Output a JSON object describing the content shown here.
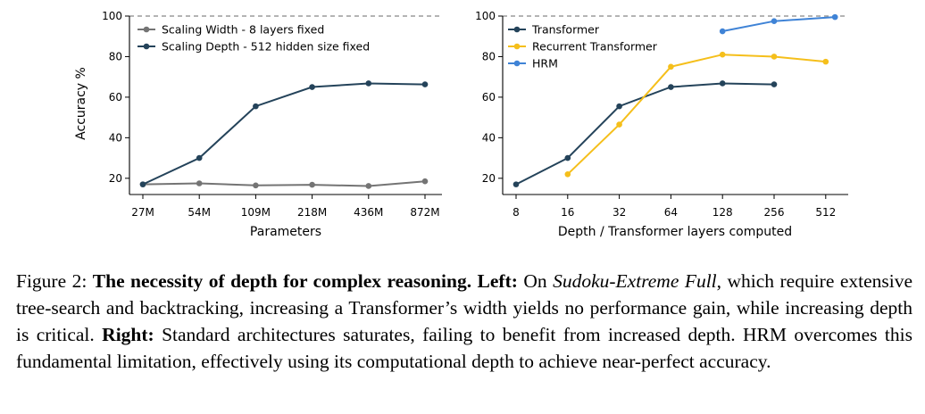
{
  "chart_data": [
    {
      "type": "line",
      "xlabel": "Parameters",
      "ylabel": "Accuracy %",
      "categories": [
        "27M",
        "54M",
        "109M",
        "218M",
        "436M",
        "872M"
      ],
      "y_ticks": [
        20,
        40,
        60,
        80,
        100
      ],
      "ylim": [
        12,
        100
      ],
      "reference_line": 100,
      "legend_position": "top-left",
      "series": [
        {
          "name": "Scaling Width - 8 layers fixed",
          "color": "#747474",
          "values": [
            17,
            17.5,
            16.5,
            16.8,
            16.2,
            18.5
          ]
        },
        {
          "name": "Scaling Depth - 512 hidden size fixed",
          "color": "#24435a",
          "values": [
            17,
            30,
            55.5,
            65,
            66.8,
            66.3
          ]
        }
      ]
    },
    {
      "type": "line",
      "xlabel": "Depth / Transformer layers computed",
      "ylabel": "",
      "categories": [
        "8",
        "16",
        "32",
        "64",
        "128",
        "256",
        "512"
      ],
      "y_ticks": [
        20,
        40,
        60,
        80,
        100
      ],
      "ylim": [
        12,
        100
      ],
      "reference_line": 100,
      "legend_position": "top-left",
      "series": [
        {
          "name": "Transformer",
          "color": "#24435a",
          "points": [
            [
              8,
              17
            ],
            [
              16,
              30
            ],
            [
              32,
              55.5
            ],
            [
              64,
              65
            ],
            [
              128,
              66.8
            ],
            [
              256,
              66.3
            ]
          ]
        },
        {
          "name": "Recurrent Transformer",
          "color": "#f5bf1b",
          "points": [
            [
              16,
              22
            ],
            [
              32,
              46.5
            ],
            [
              64,
              75
            ],
            [
              128,
              81
            ],
            [
              256,
              80
            ],
            [
              512,
              77.5
            ]
          ]
        },
        {
          "name": "HRM",
          "color": "#3f83d6",
          "points": [
            [
              128,
              92.5
            ],
            [
              256,
              97.5
            ],
            [
              580,
              99.5
            ]
          ]
        }
      ]
    }
  ],
  "caption": {
    "prefix": "Figure 2: ",
    "bold_title": "The necessity of depth for complex reasoning.",
    "left_label": "Left:",
    "t1": " On ",
    "italic": "Sudoku-Extreme Full",
    "t2": ", which require extensive tree-search and backtracking, increasing a Transformer’s width yields no performance gain, while increasing depth is critical. ",
    "right_label": "Right:",
    "t3": " Standard architectures saturates, failing to benefit from increased depth. HRM overcomes this fundamental limitation, effectively using its computational depth to achieve near-perfect accuracy."
  }
}
